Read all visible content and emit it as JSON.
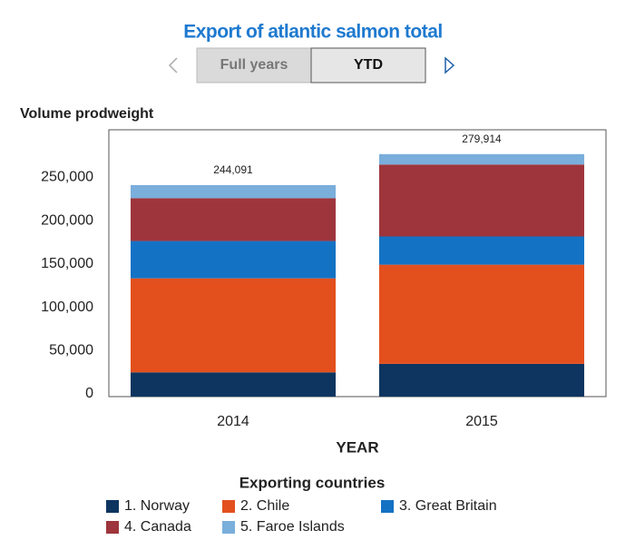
{
  "chart_data": {
    "type": "bar",
    "stacked": true,
    "title": "Export of atlantic salmon total",
    "tabs": [
      "Full years",
      "YTD"
    ],
    "active_tab": 1,
    "y_axis_label": "Volume prodweight",
    "x_axis_label": "YEAR",
    "legend_title": "Exporting countries",
    "categories": [
      "2014",
      "2015"
    ],
    "series": [
      {
        "name": "1. Norway",
        "color": "#0d3560",
        "values": [
          28000,
          37800
        ]
      },
      {
        "name": "2. Chile",
        "color": "#e3501e",
        "values": [
          108500,
          114500
        ]
      },
      {
        "name": "3. Great Britain",
        "color": "#1472c4",
        "values": [
          43100,
          32600
        ]
      },
      {
        "name": "4. Canada",
        "color": "#9e353c",
        "values": [
          49400,
          83000
        ]
      },
      {
        "name": "5. Faroe Islands",
        "color": "#7aaedb",
        "values": [
          15091,
          12014
        ]
      }
    ],
    "totals": [
      244091,
      279914
    ],
    "total_labels": [
      "244,091",
      "279,914"
    ],
    "ylim": [
      0,
      308000
    ],
    "yticks": [
      0,
      {
        "value": 50000,
        "label": "50,000"
      },
      {
        "value": 100000,
        "label": "100,000"
      },
      {
        "value": 150000,
        "label": "150,000"
      },
      {
        "value": 200000,
        "label": "200,000"
      },
      {
        "value": 250000,
        "label": "250,000"
      }
    ]
  }
}
